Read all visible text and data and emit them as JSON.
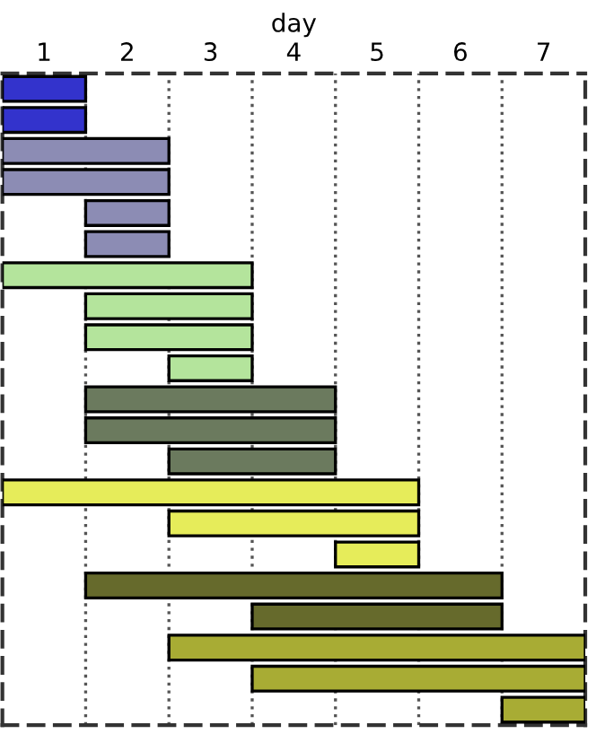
{
  "chart_data": {
    "type": "bar",
    "orientation": "horizontal",
    "xlabel": "day",
    "categories": [
      null,
      null,
      null,
      null,
      null,
      null,
      null,
      null,
      null,
      null,
      null,
      null,
      null,
      null,
      null,
      null,
      null,
      null,
      null,
      null,
      null
    ],
    "base": [
      0,
      0,
      0,
      0,
      1,
      1,
      0,
      1,
      1,
      2,
      1,
      1,
      2,
      0,
      2,
      4,
      1,
      3,
      2,
      3,
      6
    ],
    "values": [
      1,
      1,
      2,
      2,
      1,
      1,
      3,
      2,
      2,
      1,
      3,
      3,
      2,
      5,
      3,
      1,
      5,
      3,
      5,
      4,
      1
    ],
    "colors": [
      "#3333cc",
      "#3333cc",
      "#8c8cb4",
      "#8c8cb4",
      "#8c8cb4",
      "#8c8cb4",
      "#b4e49c",
      "#b4e49c",
      "#b4e49c",
      "#b4e49c",
      "#6b7a5e",
      "#6b7a5e",
      "#6b7a5e",
      "#e6ec5a",
      "#e6ec5a",
      "#e6ec5a",
      "#666a2c",
      "#666a2c",
      "#a8ac34",
      "#a8ac34",
      "#a8ac34"
    ],
    "xlim": [
      0,
      7
    ],
    "xticks": [
      {
        "value": 0.5,
        "label": "1"
      },
      {
        "value": 1.5,
        "label": "2"
      },
      {
        "value": 2.5,
        "label": "3"
      },
      {
        "value": 3.5,
        "label": "4"
      },
      {
        "value": 4.5,
        "label": "5"
      },
      {
        "value": 5.5,
        "label": "6"
      },
      {
        "value": 6.5,
        "label": "7"
      }
    ],
    "tick_labels": "x",
    "ref_lines": [
      {
        "axis": "x",
        "value": 1,
        "line_style": "dotted",
        "color": "#555555"
      },
      {
        "axis": "x",
        "value": 2,
        "line_style": "dotted",
        "color": "#555555"
      },
      {
        "axis": "x",
        "value": 3,
        "line_style": "dotted",
        "color": "#555555"
      },
      {
        "axis": "x",
        "value": 4,
        "line_style": "dotted",
        "color": "#555555"
      },
      {
        "axis": "x",
        "value": 5,
        "line_style": "dotted",
        "color": "#555555"
      },
      {
        "axis": "x",
        "value": 6,
        "line_style": "dotted",
        "color": "#555555"
      }
    ]
  }
}
